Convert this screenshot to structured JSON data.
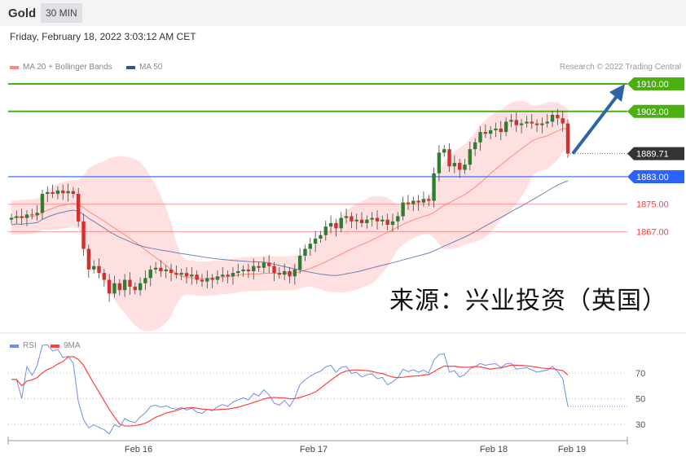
{
  "header": {
    "symbol": "Gold",
    "timeframe": "30 MIN",
    "datetime": "Friday, February 18, 2022 3:03:12 AM CET"
  },
  "legend": {
    "ma20": "MA 20 + Bollinger Bands",
    "ma50": "MA 50",
    "rsi": "RSI",
    "rsi_ma": "9MA"
  },
  "copyright": "Research © 2022 Trading Central",
  "watermark": "来源：兴业投资（英国）",
  "colors": {
    "up": "#2e7d32",
    "down": "#d32f2f",
    "resistance": "#4caf10",
    "support": "#2962ff",
    "support_red": "#ff6b6b",
    "ma50": "#2f5597",
    "ma20": "#ff8a80",
    "band": "#ffd6d6",
    "rsi": "#6f8ee8",
    "rsi_ma": "#ff4040",
    "arrow": "#2e64a6"
  },
  "chart_data": {
    "type": "candlestick",
    "x_tick_labels": [
      "Feb 16",
      "Feb 17",
      "Feb 18",
      "Feb 19"
    ],
    "ylim": [
      1845,
      1912
    ],
    "levels": [
      {
        "label": "1910.00",
        "value": 1910,
        "kind": "resistance"
      },
      {
        "label": "1902.00",
        "value": 1902,
        "kind": "resistance"
      },
      {
        "label": "1889.71",
        "value": 1889.71,
        "kind": "last"
      },
      {
        "label": "1883.00",
        "value": 1883,
        "kind": "support"
      },
      {
        "label": "1875.00",
        "value": 1875,
        "kind": "support2"
      },
      {
        "label": "1867.00",
        "value": 1867,
        "kind": "support2"
      }
    ],
    "target_arrow": {
      "from": 1889.71,
      "to": 1910
    },
    "closes": [
      1871,
      1871.5,
      1871,
      1872,
      1871.8,
      1872.5,
      1878,
      1878.5,
      1878,
      1879,
      1878.2,
      1878.8,
      1878,
      1870,
      1862,
      1856,
      1857,
      1855,
      1853,
      1849,
      1852,
      1850,
      1853,
      1851,
      1850,
      1852,
      1853.5,
      1856,
      1856.5,
      1855.5,
      1856,
      1855,
      1854.5,
      1855,
      1854,
      1854.5,
      1853,
      1852.5,
      1853.5,
      1853,
      1854,
      1854.5,
      1854,
      1855,
      1855.5,
      1856,
      1855.5,
      1857,
      1856.5,
      1858,
      1857,
      1855,
      1854.5,
      1855.5,
      1854,
      1856,
      1860,
      1862,
      1863.5,
      1865,
      1866,
      1868.5,
      1869.5,
      1868,
      1871,
      1871.5,
      1870,
      1870.5,
      1869.5,
      1870.5,
      1871,
      1870,
      1870.5,
      1869,
      1870,
      1871.5,
      1875.5,
      1875,
      1876,
      1875.5,
      1876.5,
      1876,
      1884,
      1890,
      1891,
      1886,
      1887,
      1885,
      1886.5,
      1891,
      1893,
      1896,
      1895.5,
      1896.5,
      1897,
      1896,
      1899,
      1899.5,
      1898,
      1898.5,
      1899,
      1898.5,
      1898,
      1898.5,
      1899,
      1901,
      1900,
      1898.5,
      1889.71
    ],
    "rsi": {
      "ticks": [
        70,
        50,
        30
      ],
      "ylim": [
        20,
        85
      ]
    }
  }
}
